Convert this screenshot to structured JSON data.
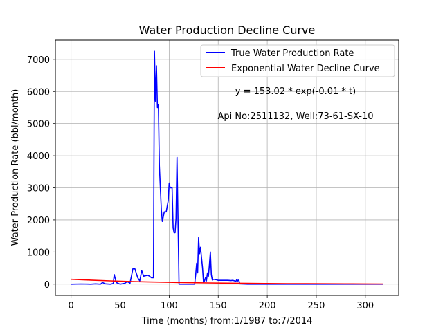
{
  "chart_data": {
    "type": "line",
    "title": "Water Production Decline Curve",
    "xlabel": "Time (months) from:1/1987 to:7/2014",
    "ylabel": "Water Production Rate (bbl/month)",
    "xlim": [
      -16,
      334
    ],
    "ylim": [
      -350,
      7600
    ],
    "xticks": [
      0,
      50,
      100,
      150,
      200,
      250,
      300
    ],
    "yticks": [
      0,
      1000,
      2000,
      3000,
      4000,
      5000,
      6000,
      7000
    ],
    "grid": true,
    "legend_position": "top-right",
    "series": [
      {
        "name": "True Water Production Rate",
        "color": "#0000ff",
        "x": [
          0,
          10,
          20,
          25,
          30,
          32,
          35,
          40,
          43,
          44,
          46,
          50,
          55,
          57,
          59,
          60,
          63,
          65,
          68,
          70,
          72,
          74,
          78,
          80,
          82,
          84,
          85,
          86,
          87,
          88,
          89,
          90,
          92,
          93,
          95,
          97,
          99,
          100,
          101,
          103,
          104,
          105,
          106,
          107,
          108,
          109,
          110,
          112,
          115,
          120,
          126,
          127,
          128,
          129,
          130,
          131,
          132,
          133,
          134,
          135,
          136,
          137,
          138,
          139,
          140,
          141,
          142,
          143,
          144,
          145,
          146,
          148,
          150,
          155,
          160,
          163,
          165,
          168,
          169,
          170,
          171,
          172,
          180,
          200,
          220,
          250,
          280,
          300,
          318
        ],
        "values": [
          0,
          5,
          0,
          10,
          0,
          50,
          10,
          0,
          20,
          300,
          50,
          0,
          30,
          80,
          50,
          20,
          480,
          480,
          200,
          100,
          420,
          250,
          280,
          250,
          200,
          200,
          7250,
          5700,
          6800,
          5500,
          5600,
          3700,
          2300,
          1950,
          2250,
          2250,
          2600,
          3150,
          3000,
          3000,
          1750,
          1600,
          1600,
          2050,
          3950,
          2050,
          0,
          0,
          0,
          0,
          0,
          300,
          650,
          350,
          1450,
          950,
          1150,
          800,
          500,
          50,
          100,
          200,
          100,
          350,
          250,
          600,
          1000,
          300,
          130,
          150,
          150,
          140,
          120,
          120,
          120,
          110,
          120,
          90,
          150,
          100,
          130,
          10,
          0,
          0,
          0,
          0,
          0,
          0,
          0
        ]
      },
      {
        "name": "Exponential Water Decline Curve",
        "color": "#ff0000",
        "fn": "153.02*exp(-0.01*t)",
        "x": [
          0,
          20,
          40,
          60,
          80,
          100,
          120,
          140,
          160,
          180,
          200,
          220,
          240,
          260,
          280,
          300,
          318
        ],
        "values": [
          153.0,
          125.3,
          102.6,
          84.0,
          68.8,
          56.3,
          46.1,
          37.7,
          30.9,
          25.3,
          20.7,
          17.0,
          13.9,
          11.4,
          9.3,
          7.6,
          6.4
        ]
      }
    ],
    "annotations": [
      "y = 153.02 * exp(-0.01 * t)",
      "Api No:2511132, Well:73-61-SX-10"
    ]
  }
}
